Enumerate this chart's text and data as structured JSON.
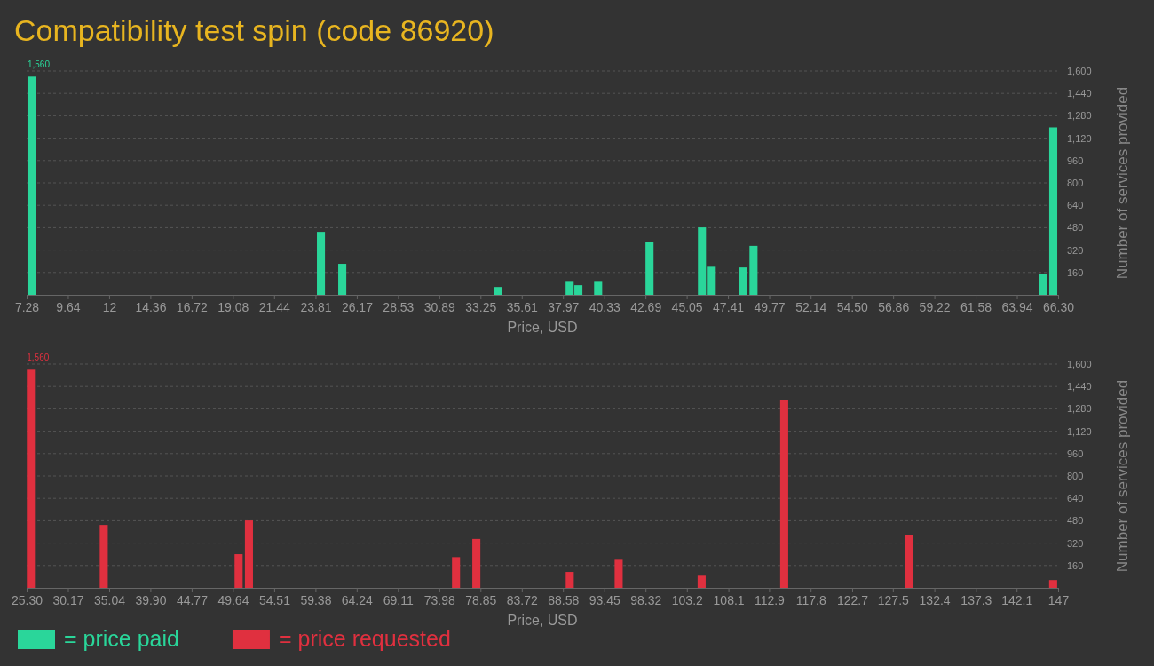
{
  "chart_data": [
    {
      "type": "bar",
      "title": "Compatibility test spin (code 86920)",
      "xlabel": "Price, USD",
      "ylabel": "Number of services provided",
      "x": [
        7.56,
        24.12,
        25.34,
        34.24,
        38.35,
        38.85,
        39.98,
        42.92,
        45.92,
        46.48,
        48.26,
        48.87,
        65.46,
        66.02
      ],
      "series": [
        {
          "name": "= price paid",
          "color": "#2ad69a",
          "values": [
            1560,
            450,
            222,
            56,
            93,
            69,
            93,
            381,
            482,
            201,
            196,
            350,
            151,
            1197
          ],
          "value_labels": [
            "1,560",
            null,
            null,
            null,
            null,
            null,
            null,
            null,
            null,
            null,
            null,
            null,
            null,
            null
          ]
        }
      ],
      "xlim": [
        7.28,
        66.3
      ],
      "xticks": [
        7.28,
        9.64,
        12,
        14.36,
        16.72,
        19.08,
        21.44,
        23.81,
        26.17,
        28.53,
        30.89,
        33.25,
        35.61,
        37.97,
        40.33,
        42.69,
        45.05,
        47.41,
        49.77,
        52.14,
        {
          "value": 54.5,
          "label": "54.50"
        },
        56.86,
        59.22,
        61.58,
        63.94,
        {
          "value": 66.3,
          "label": "66.30"
        }
      ],
      "ylim": [
        0,
        1600
      ],
      "yticks": [
        160,
        320,
        480,
        640,
        800,
        960,
        {
          "value": 1120,
          "label": "1,120"
        },
        {
          "value": 1280,
          "label": "1,280"
        },
        {
          "value": 1440,
          "label": "1,440"
        },
        {
          "value": 1600,
          "label": "1,600"
        }
      ],
      "grid": "y",
      "legend": "bottom"
    },
    {
      "type": "bar",
      "xlabel": "Price, USD",
      "ylabel": "Number of services provided",
      "x": [
        25.8,
        34.4,
        50.31,
        51.53,
        75.96,
        78.36,
        89.38,
        95.15,
        104.94,
        114.68,
        129.37,
        146.41
      ],
      "series": [
        {
          "name": "= price requested",
          "color": "#e0303f",
          "values": [
            1560,
            450,
            241,
            482,
            220,
            350,
            114,
            201,
            87,
            1343,
            381,
            56
          ],
          "value_labels": [
            "1,560",
            null,
            null,
            null,
            null,
            null,
            null,
            null,
            null,
            null,
            null,
            null
          ]
        }
      ],
      "xlim": [
        25.3,
        147
      ],
      "xticks": [
        {
          "value": 25.3,
          "label": "25.30"
        },
        30.17,
        35.04,
        {
          "value": 39.9,
          "label": "39.90"
        },
        44.77,
        49.64,
        54.51,
        59.38,
        64.24,
        69.11,
        73.98,
        78.85,
        83.72,
        88.58,
        93.45,
        98.32,
        103.2,
        108.1,
        112.9,
        117.8,
        122.7,
        127.5,
        132.4,
        137.3,
        142.1,
        147
      ],
      "ylim": [
        0,
        1600
      ],
      "yticks": [
        160,
        320,
        480,
        640,
        800,
        960,
        {
          "value": 1120,
          "label": "1,120"
        },
        {
          "value": 1280,
          "label": "1,280"
        },
        {
          "value": 1440,
          "label": "1,440"
        },
        {
          "value": 1600,
          "label": "1,600"
        }
      ],
      "grid": "y",
      "legend": "bottom"
    }
  ]
}
